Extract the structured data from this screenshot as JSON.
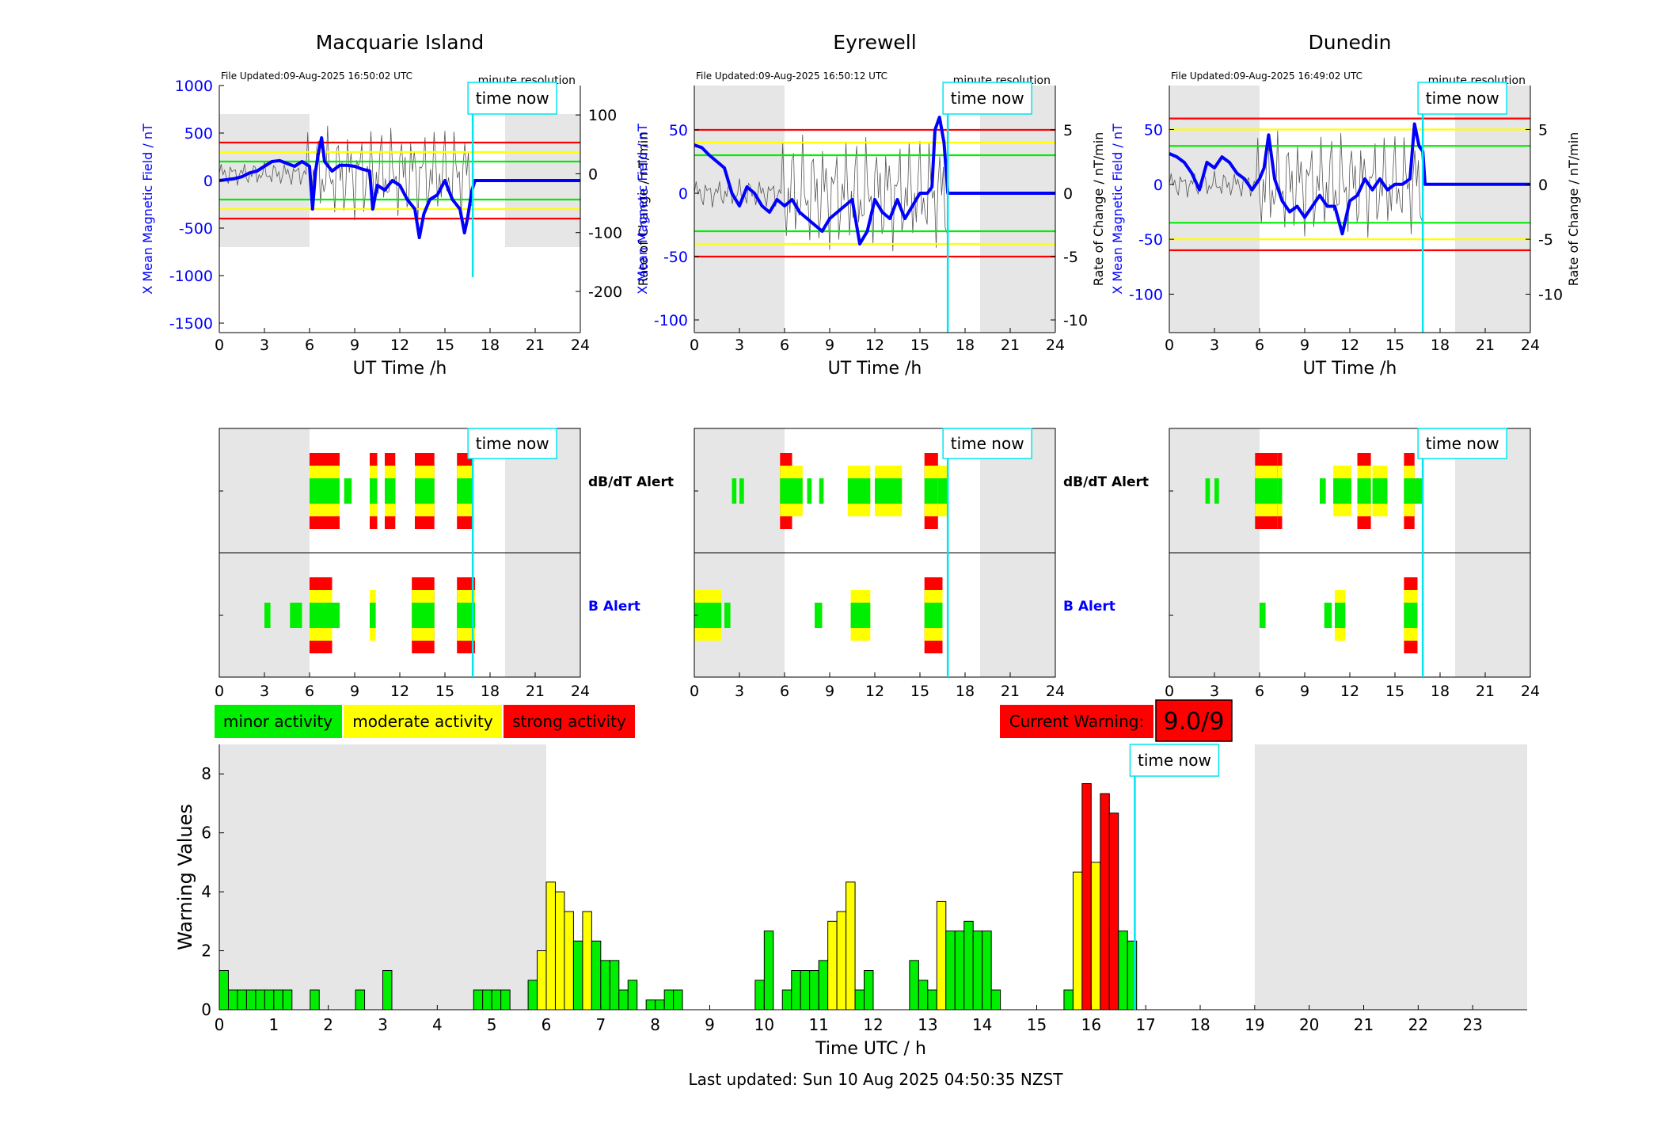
{
  "stations": [
    {
      "title": "Macquarie Island",
      "file_updated": "File Updated:09-Aug-2025 16:50:02 UTC",
      "resolution": "minute resolution",
      "time_now": "time now",
      "left_ylabel": "X Mean Magnetic Field / nT",
      "right_ylabel": "Rate of Change / nT/min",
      "xlabel": "UT Time /h",
      "left_yticks": [
        "1000",
        "500",
        "0",
        "-500",
        "-1000",
        "-1500"
      ],
      "right_yticks": [
        "100",
        "0",
        "-100",
        "-200"
      ],
      "xticks": [
        "0",
        "3",
        "6",
        "9",
        "12",
        "15",
        "18",
        "21",
        "24"
      ]
    },
    {
      "title": "Eyrewell",
      "file_updated": "File Updated:09-Aug-2025 16:50:12 UTC",
      "resolution": "minute resolution",
      "time_now": "time now",
      "left_ylabel": "X Mean Magnetic Field / nT",
      "right_ylabel": "Rate of Change / nT/min",
      "xlabel": "UT Time /h",
      "left_yticks": [
        "50",
        "0",
        "-50",
        "-100"
      ],
      "right_yticks": [
        "5",
        "0",
        "-5",
        "-10"
      ],
      "xticks": [
        "0",
        "3",
        "6",
        "9",
        "12",
        "15",
        "18",
        "21",
        "24"
      ]
    },
    {
      "title": "Dunedin",
      "file_updated": "File Updated:09-Aug-2025 16:49:02 UTC",
      "resolution": "minute resolution",
      "time_now": "time now",
      "left_ylabel": "X Mean Magnetic Field / nT",
      "right_ylabel": "Rate of Change / nT/min",
      "xlabel": "UT Time /h",
      "left_yticks": [
        "50",
        "0",
        "-50",
        "-100"
      ],
      "right_yticks": [
        "5",
        "0",
        "-5",
        "-10"
      ],
      "xticks": [
        "0",
        "3",
        "6",
        "9",
        "12",
        "15",
        "18",
        "21",
        "24"
      ]
    }
  ],
  "alerts": {
    "dbdt_label": "dB/dT Alert",
    "b_label": "B Alert",
    "time_now": "time now",
    "xticks": [
      "0",
      "3",
      "6",
      "9",
      "12",
      "15",
      "18",
      "21",
      "24"
    ]
  },
  "legend": {
    "minor": "minor activity",
    "moderate": "moderate activity",
    "strong": "strong activity"
  },
  "current_warning": {
    "label": "Current Warning:",
    "value": "9.0/9"
  },
  "colors": {
    "minor": "#00ee00",
    "moderate": "#ffff00",
    "strong": "#ff0000",
    "field_line": "#0000ff",
    "now_line": "#00e5ee",
    "quiet_bg": "#e6e6e6"
  },
  "chart_data": [
    {
      "type": "line",
      "title": "Macquarie Island",
      "xlabel": "UT Time /h",
      "ylabel": "X Mean Magnetic Field / nT",
      "y2label": "Rate of Change / nT/min",
      "xlim": [
        0,
        24
      ],
      "ylim": [
        -1600,
        1000
      ],
      "y2lim": [
        -270,
        150
      ],
      "thresholds": {
        "minor": 200,
        "moderate": 300,
        "strong": 400
      },
      "now_hour": 16.85,
      "quiet_bands": [
        [
          0,
          6
        ],
        [
          19,
          24
        ]
      ],
      "series": [
        {
          "x": [
            0,
            0.5,
            1,
            1.5,
            2,
            2.5,
            3,
            3.5,
            4,
            4.5,
            5,
            5.5,
            6,
            6.2,
            6.4,
            6.6,
            6.8,
            7,
            7.5,
            8,
            8.5,
            9,
            9.5,
            10,
            10.2,
            10.5,
            11,
            11.5,
            12,
            12.5,
            13,
            13.3,
            13.6,
            14,
            14.5,
            15,
            15.5,
            16,
            16.3,
            16.5,
            16.8,
            17,
            24
          ],
          "y": [
            0,
            10,
            20,
            40,
            80,
            100,
            150,
            200,
            210,
            180,
            150,
            200,
            150,
            -300,
            100,
            300,
            450,
            200,
            100,
            160,
            160,
            150,
            120,
            100,
            -300,
            -50,
            -100,
            0,
            -50,
            -200,
            -300,
            -600,
            -350,
            -200,
            -150,
            0,
            -200,
            -300,
            -550,
            -400,
            -100,
            0,
            0
          ]
        }
      ]
    },
    {
      "type": "line",
      "title": "Eyrewell",
      "xlabel": "UT Time /h",
      "ylabel": "X Mean Magnetic Field / nT",
      "y2label": "Rate of Change / nT/min",
      "xlim": [
        0,
        24
      ],
      "ylim": [
        -110,
        85
      ],
      "y2lim": [
        -11,
        8.5
      ],
      "thresholds": {
        "minor": 30,
        "moderate": 40,
        "strong": 50
      },
      "now_hour": 16.85,
      "quiet_bands": [
        [
          0,
          6
        ],
        [
          19,
          24
        ]
      ],
      "series": [
        {
          "x": [
            0,
            0.5,
            1,
            1.5,
            2,
            2.5,
            3,
            3.5,
            4,
            4.5,
            5,
            5.5,
            6,
            6.5,
            7,
            7.5,
            8,
            8.5,
            9,
            9.5,
            10,
            10.5,
            11,
            11.5,
            12,
            12.5,
            13,
            13.5,
            14,
            14.5,
            15,
            15.5,
            15.8,
            16,
            16.3,
            16.6,
            16.85,
            17,
            24
          ],
          "y": [
            38,
            36,
            30,
            25,
            20,
            0,
            -10,
            5,
            0,
            -10,
            -15,
            -5,
            -10,
            -5,
            -15,
            -20,
            -25,
            -30,
            -20,
            -15,
            -10,
            -5,
            -40,
            -30,
            -5,
            -15,
            -20,
            -5,
            -20,
            -10,
            0,
            0,
            5,
            50,
            60,
            40,
            0,
            0,
            0
          ]
        }
      ]
    },
    {
      "type": "line",
      "title": "Dunedin",
      "xlabel": "UT Time /h",
      "ylabel": "X Mean Magnetic Field / nT",
      "y2label": "Rate of Change / nT/min",
      "xlim": [
        0,
        24
      ],
      "ylim": [
        -135,
        90
      ],
      "y2lim": [
        -13.5,
        9
      ],
      "thresholds": {
        "minor": 35,
        "moderate": 50,
        "strong": 60
      },
      "now_hour": 16.85,
      "quiet_bands": [
        [
          0,
          6
        ],
        [
          19,
          24
        ]
      ],
      "series": [
        {
          "x": [
            0,
            0.5,
            1,
            1.5,
            2,
            2.5,
            3,
            3.5,
            4,
            4.5,
            5,
            5.5,
            6,
            6.3,
            6.6,
            7,
            7.5,
            8,
            8.5,
            9,
            9.5,
            10,
            10.5,
            11,
            11.5,
            12,
            12.5,
            13,
            13.5,
            14,
            14.5,
            15,
            15.5,
            16,
            16.3,
            16.6,
            16.85,
            17,
            24
          ],
          "y": [
            28,
            25,
            20,
            10,
            -5,
            20,
            15,
            25,
            20,
            10,
            5,
            -5,
            5,
            15,
            45,
            5,
            -15,
            -25,
            -20,
            -30,
            -20,
            -10,
            -20,
            -20,
            -45,
            -15,
            -10,
            5,
            -5,
            5,
            -5,
            0,
            0,
            5,
            55,
            35,
            30,
            0,
            0
          ]
        }
      ]
    },
    {
      "type": "bar",
      "xlabel": "Time UTC / h",
      "ylabel": "Warning Values",
      "xlim": [
        0,
        24
      ],
      "ylim": [
        0,
        9
      ],
      "xticks": [
        "0",
        "1",
        "2",
        "3",
        "4",
        "5",
        "6",
        "7",
        "8",
        "9",
        "10",
        "11",
        "12",
        "13",
        "14",
        "15",
        "16",
        "17",
        "18",
        "19",
        "20",
        "21",
        "22",
        "23"
      ],
      "yticks": [
        "0",
        "2",
        "4",
        "6",
        "8"
      ],
      "now_hour": 16.8,
      "quiet_bands": [
        [
          0,
          6
        ],
        [
          19,
          24
        ]
      ],
      "bars": [
        {
          "x": 0.0,
          "v": 1.33,
          "c": "minor"
        },
        {
          "x": 0.167,
          "v": 0.67,
          "c": "minor"
        },
        {
          "x": 0.333,
          "v": 0.67,
          "c": "minor"
        },
        {
          "x": 0.5,
          "v": 0.67,
          "c": "minor"
        },
        {
          "x": 0.667,
          "v": 0.67,
          "c": "minor"
        },
        {
          "x": 0.833,
          "v": 0.67,
          "c": "minor"
        },
        {
          "x": 1.0,
          "v": 0.67,
          "c": "minor"
        },
        {
          "x": 1.167,
          "v": 0.67,
          "c": "minor"
        },
        {
          "x": 1.667,
          "v": 0.67,
          "c": "minor"
        },
        {
          "x": 2.5,
          "v": 0.67,
          "c": "minor"
        },
        {
          "x": 3.0,
          "v": 1.33,
          "c": "minor"
        },
        {
          "x": 4.667,
          "v": 0.67,
          "c": "minor"
        },
        {
          "x": 4.833,
          "v": 0.67,
          "c": "minor"
        },
        {
          "x": 5.0,
          "v": 0.67,
          "c": "minor"
        },
        {
          "x": 5.167,
          "v": 0.67,
          "c": "minor"
        },
        {
          "x": 5.667,
          "v": 1.0,
          "c": "minor"
        },
        {
          "x": 5.833,
          "v": 2.0,
          "c": "moderate"
        },
        {
          "x": 6.0,
          "v": 4.33,
          "c": "moderate"
        },
        {
          "x": 6.167,
          "v": 4.0,
          "c": "moderate"
        },
        {
          "x": 6.333,
          "v": 3.33,
          "c": "moderate"
        },
        {
          "x": 6.5,
          "v": 2.33,
          "c": "minor"
        },
        {
          "x": 6.667,
          "v": 3.33,
          "c": "moderate"
        },
        {
          "x": 6.833,
          "v": 2.33,
          "c": "minor"
        },
        {
          "x": 7.0,
          "v": 1.67,
          "c": "minor"
        },
        {
          "x": 7.167,
          "v": 1.67,
          "c": "minor"
        },
        {
          "x": 7.333,
          "v": 0.67,
          "c": "minor"
        },
        {
          "x": 7.5,
          "v": 1.0,
          "c": "minor"
        },
        {
          "x": 7.833,
          "v": 0.33,
          "c": "minor"
        },
        {
          "x": 8.0,
          "v": 0.33,
          "c": "minor"
        },
        {
          "x": 8.167,
          "v": 0.67,
          "c": "minor"
        },
        {
          "x": 8.333,
          "v": 0.67,
          "c": "minor"
        },
        {
          "x": 9.833,
          "v": 1.0,
          "c": "minor"
        },
        {
          "x": 10.0,
          "v": 2.67,
          "c": "minor"
        },
        {
          "x": 10.333,
          "v": 0.67,
          "c": "minor"
        },
        {
          "x": 10.5,
          "v": 1.33,
          "c": "minor"
        },
        {
          "x": 10.667,
          "v": 1.33,
          "c": "minor"
        },
        {
          "x": 10.833,
          "v": 1.33,
          "c": "minor"
        },
        {
          "x": 11.0,
          "v": 1.67,
          "c": "minor"
        },
        {
          "x": 11.167,
          "v": 3.0,
          "c": "moderate"
        },
        {
          "x": 11.333,
          "v": 3.33,
          "c": "moderate"
        },
        {
          "x": 11.5,
          "v": 4.33,
          "c": "moderate"
        },
        {
          "x": 11.667,
          "v": 0.67,
          "c": "minor"
        },
        {
          "x": 11.833,
          "v": 1.33,
          "c": "minor"
        },
        {
          "x": 12.667,
          "v": 1.67,
          "c": "minor"
        },
        {
          "x": 12.833,
          "v": 1.0,
          "c": "minor"
        },
        {
          "x": 13.0,
          "v": 0.67,
          "c": "minor"
        },
        {
          "x": 13.167,
          "v": 3.67,
          "c": "moderate"
        },
        {
          "x": 13.333,
          "v": 2.67,
          "c": "minor"
        },
        {
          "x": 13.5,
          "v": 2.67,
          "c": "minor"
        },
        {
          "x": 13.667,
          "v": 3.0,
          "c": "minor"
        },
        {
          "x": 13.833,
          "v": 2.67,
          "c": "minor"
        },
        {
          "x": 14.0,
          "v": 2.67,
          "c": "minor"
        },
        {
          "x": 14.167,
          "v": 0.67,
          "c": "minor"
        },
        {
          "x": 15.5,
          "v": 0.67,
          "c": "minor"
        },
        {
          "x": 15.667,
          "v": 4.67,
          "c": "moderate"
        },
        {
          "x": 15.833,
          "v": 7.67,
          "c": "strong"
        },
        {
          "x": 16.0,
          "v": 5.0,
          "c": "moderate"
        },
        {
          "x": 16.167,
          "v": 7.33,
          "c": "strong"
        },
        {
          "x": 16.333,
          "v": 6.67,
          "c": "strong"
        },
        {
          "x": 16.5,
          "v": 2.67,
          "c": "minor"
        },
        {
          "x": 16.667,
          "v": 2.33,
          "c": "minor"
        }
      ]
    }
  ],
  "time_now_label": "time now",
  "footer": "Last updated: Sun 10 Aug 2025 04:50:35 NZST"
}
